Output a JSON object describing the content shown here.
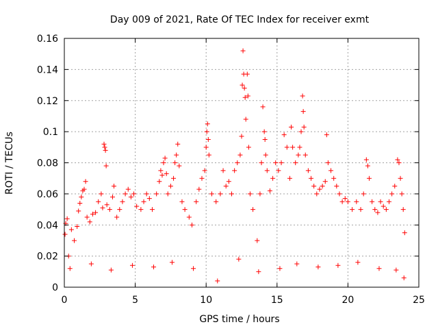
{
  "chart_data": {
    "type": "scatter",
    "title": "Day 009 of 2021, Rate Of TEC Index for receiver exmt",
    "xlabel": "GPS time / hours",
    "ylabel": "ROTI / TECUs",
    "xlim": [
      0,
      25
    ],
    "ylim": [
      0,
      0.16
    ],
    "xticks": [
      0,
      5,
      10,
      15,
      20,
      25
    ],
    "xtick_labels": [
      "0",
      "5",
      "10",
      "15",
      "20",
      "25"
    ],
    "yticks": [
      0,
      0.02,
      0.04,
      0.06,
      0.08,
      0.1,
      0.12,
      0.14,
      0.16
    ],
    "ytick_labels": [
      "0",
      "0.02",
      "0.04",
      "0.06",
      "0.08",
      "0.1",
      "0.12",
      "0.14",
      "0.16"
    ],
    "grid": true,
    "marker": "plus",
    "marker_color": "#ff0000",
    "series": [
      {
        "values": [
          [
            0.05,
            0.034
          ],
          [
            0.1,
            0.041
          ],
          [
            0.2,
            0.044
          ],
          [
            0.3,
            0.02
          ],
          [
            0.5,
            0.037
          ],
          [
            0.7,
            0.03
          ],
          [
            0.9,
            0.039
          ],
          [
            1.0,
            0.049
          ],
          [
            1.1,
            0.054
          ],
          [
            1.2,
            0.058
          ],
          [
            1.3,
            0.062
          ],
          [
            1.4,
            0.063
          ],
          [
            1.5,
            0.068
          ],
          [
            1.6,
            0.045
          ],
          [
            1.8,
            0.042
          ],
          [
            2.0,
            0.047
          ],
          [
            2.2,
            0.048
          ],
          [
            2.4,
            0.055
          ],
          [
            2.6,
            0.06
          ],
          [
            2.7,
            0.051
          ],
          [
            2.8,
            0.092
          ],
          [
            2.85,
            0.09
          ],
          [
            2.9,
            0.088
          ],
          [
            2.95,
            0.078
          ],
          [
            3.0,
            0.053
          ],
          [
            3.2,
            0.05
          ],
          [
            3.4,
            0.058
          ],
          [
            3.5,
            0.065
          ],
          [
            3.7,
            0.045
          ],
          [
            3.9,
            0.05
          ],
          [
            4.1,
            0.055
          ],
          [
            4.3,
            0.06
          ],
          [
            4.5,
            0.063
          ],
          [
            4.7,
            0.058
          ],
          [
            4.9,
            0.06
          ],
          [
            5.1,
            0.052
          ],
          [
            5.4,
            0.05
          ],
          [
            5.6,
            0.055
          ],
          [
            5.8,
            0.06
          ],
          [
            6.0,
            0.057
          ],
          [
            6.2,
            0.05
          ],
          [
            6.5,
            0.06
          ],
          [
            6.7,
            0.068
          ],
          [
            6.8,
            0.075
          ],
          [
            6.9,
            0.072
          ],
          [
            7.0,
            0.08
          ],
          [
            7.1,
            0.083
          ],
          [
            7.2,
            0.073
          ],
          [
            7.3,
            0.06
          ],
          [
            7.5,
            0.065
          ],
          [
            7.7,
            0.07
          ],
          [
            7.8,
            0.08
          ],
          [
            7.9,
            0.085
          ],
          [
            8.0,
            0.092
          ],
          [
            8.1,
            0.078
          ],
          [
            8.3,
            0.055
          ],
          [
            8.5,
            0.05
          ],
          [
            8.8,
            0.045
          ],
          [
            9.0,
            0.04
          ],
          [
            9.3,
            0.055
          ],
          [
            9.5,
            0.063
          ],
          [
            9.7,
            0.07
          ],
          [
            9.9,
            0.075
          ],
          [
            10.0,
            0.09
          ],
          [
            10.05,
            0.1
          ],
          [
            10.1,
            0.105
          ],
          [
            10.15,
            0.095
          ],
          [
            10.2,
            0.085
          ],
          [
            10.4,
            0.06
          ],
          [
            10.7,
            0.055
          ],
          [
            11.0,
            0.06
          ],
          [
            11.2,
            0.075
          ],
          [
            11.4,
            0.065
          ],
          [
            11.6,
            0.068
          ],
          [
            11.8,
            0.06
          ],
          [
            12.0,
            0.075
          ],
          [
            12.2,
            0.08
          ],
          [
            12.4,
            0.085
          ],
          [
            12.5,
            0.097
          ],
          [
            12.55,
            0.13
          ],
          [
            12.6,
            0.152
          ],
          [
            12.65,
            0.137
          ],
          [
            12.7,
            0.128
          ],
          [
            12.75,
            0.122
          ],
          [
            12.8,
            0.108
          ],
          [
            12.9,
            0.137
          ],
          [
            12.95,
            0.123
          ],
          [
            13.0,
            0.09
          ],
          [
            13.1,
            0.06
          ],
          [
            13.3,
            0.05
          ],
          [
            13.6,
            0.03
          ],
          [
            13.8,
            0.06
          ],
          [
            13.9,
            0.08
          ],
          [
            14.0,
            0.116
          ],
          [
            14.1,
            0.1
          ],
          [
            14.15,
            0.095
          ],
          [
            14.2,
            0.085
          ],
          [
            14.3,
            0.075
          ],
          [
            14.5,
            0.062
          ],
          [
            14.7,
            0.07
          ],
          [
            14.9,
            0.08
          ],
          [
            15.1,
            0.075
          ],
          [
            15.3,
            0.08
          ],
          [
            15.5,
            0.098
          ],
          [
            15.7,
            0.09
          ],
          [
            15.9,
            0.07
          ],
          [
            16.0,
            0.103
          ],
          [
            16.1,
            0.09
          ],
          [
            16.3,
            0.08
          ],
          [
            16.5,
            0.085
          ],
          [
            16.6,
            0.09
          ],
          [
            16.7,
            0.1
          ],
          [
            16.8,
            0.123
          ],
          [
            16.85,
            0.113
          ],
          [
            16.9,
            0.103
          ],
          [
            17.0,
            0.085
          ],
          [
            17.2,
            0.075
          ],
          [
            17.4,
            0.07
          ],
          [
            17.6,
            0.065
          ],
          [
            17.8,
            0.06
          ],
          [
            18.0,
            0.063
          ],
          [
            18.2,
            0.065
          ],
          [
            18.4,
            0.068
          ],
          [
            18.5,
            0.098
          ],
          [
            18.6,
            0.08
          ],
          [
            18.8,
            0.075
          ],
          [
            19.0,
            0.07
          ],
          [
            19.2,
            0.065
          ],
          [
            19.4,
            0.06
          ],
          [
            19.6,
            0.055
          ],
          [
            19.8,
            0.057
          ],
          [
            20.0,
            0.055
          ],
          [
            20.3,
            0.05
          ],
          [
            20.6,
            0.055
          ],
          [
            20.9,
            0.05
          ],
          [
            21.1,
            0.06
          ],
          [
            21.3,
            0.082
          ],
          [
            21.4,
            0.078
          ],
          [
            21.5,
            0.07
          ],
          [
            21.7,
            0.055
          ],
          [
            21.9,
            0.05
          ],
          [
            22.1,
            0.048
          ],
          [
            22.3,
            0.055
          ],
          [
            22.5,
            0.052
          ],
          [
            22.7,
            0.05
          ],
          [
            22.9,
            0.055
          ],
          [
            23.1,
            0.06
          ],
          [
            23.3,
            0.065
          ],
          [
            23.5,
            0.082
          ],
          [
            23.6,
            0.08
          ],
          [
            23.7,
            0.07
          ],
          [
            23.8,
            0.06
          ],
          [
            23.9,
            0.05
          ],
          [
            24.0,
            0.035
          ],
          [
            0.4,
            0.012
          ],
          [
            1.9,
            0.015
          ],
          [
            3.3,
            0.011
          ],
          [
            4.8,
            0.014
          ],
          [
            6.3,
            0.013
          ],
          [
            7.6,
            0.016
          ],
          [
            9.1,
            0.012
          ],
          [
            10.8,
            0.004
          ],
          [
            12.3,
            0.018
          ],
          [
            13.7,
            0.01
          ],
          [
            15.2,
            0.012
          ],
          [
            16.4,
            0.015
          ],
          [
            17.9,
            0.013
          ],
          [
            19.3,
            0.014
          ],
          [
            20.7,
            0.016
          ],
          [
            22.2,
            0.012
          ],
          [
            23.4,
            0.011
          ],
          [
            23.95,
            0.006
          ]
        ]
      }
    ]
  }
}
